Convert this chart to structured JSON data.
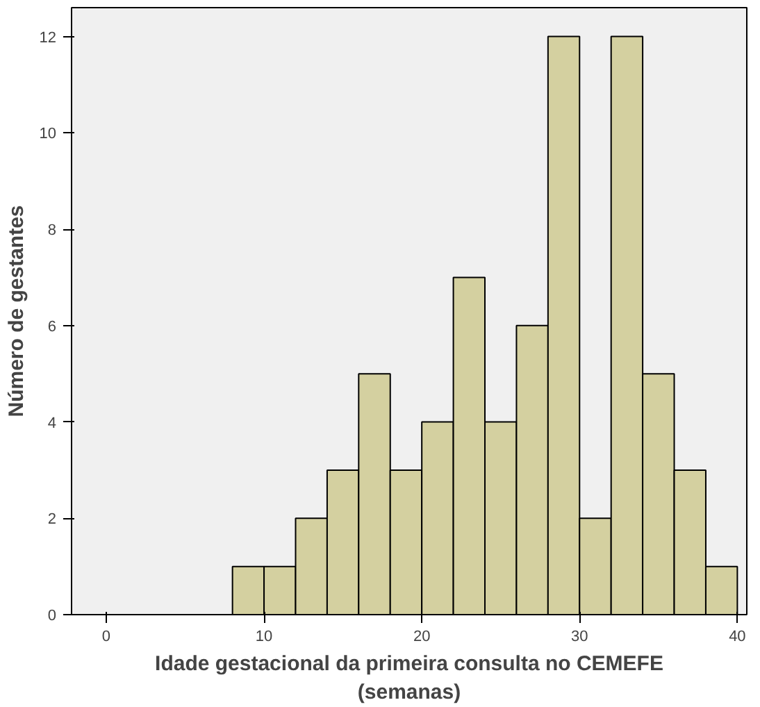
{
  "chart_data": {
    "type": "histogram",
    "xlabel": "Idade gestacional da primeira consulta no CEMEFE\n(semanas)",
    "ylabel": "Número de gestantes",
    "bins": [
      8,
      10,
      12,
      14,
      16,
      18,
      20,
      22,
      24,
      26,
      28,
      30,
      32,
      34,
      36,
      38,
      40
    ],
    "values": [
      1,
      1,
      2,
      3,
      5,
      3,
      4,
      7,
      4,
      6,
      12,
      2,
      12,
      5,
      3,
      1
    ],
    "color": "#d4d0a0",
    "xlim": [
      -2.2,
      40.6
    ],
    "ylim": [
      0,
      12.6
    ],
    "xticks": [
      0,
      10,
      20,
      30,
      40
    ],
    "yticks": [
      0,
      2,
      4,
      6,
      8,
      10,
      12
    ],
    "grid": false
  }
}
